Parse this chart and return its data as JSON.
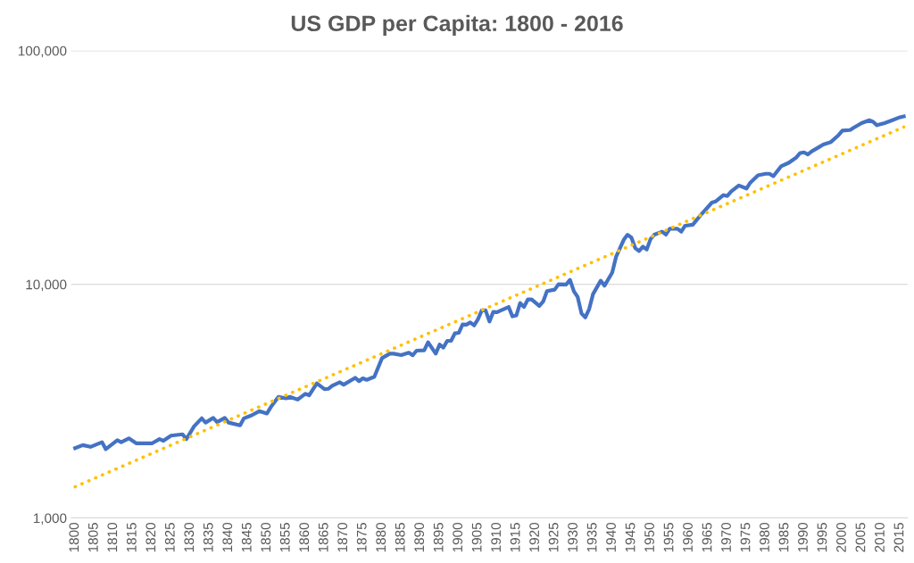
{
  "chart_data": {
    "type": "line",
    "title": "US GDP per Capita: 1800 - 2016",
    "series": [
      {
        "color": "#4472c4",
        "line_style": "solid",
        "x": [
          1800,
          1802,
          1804,
          1807,
          1808,
          1811,
          1812,
          1814,
          1816,
          1820,
          1822,
          1823,
          1825,
          1828,
          1829,
          1831,
          1833,
          1834,
          1836,
          1837,
          1839,
          1840,
          1843,
          1844,
          1846,
          1848,
          1850,
          1851,
          1853,
          1855,
          1856,
          1858,
          1860,
          1861,
          1863,
          1865,
          1866,
          1867,
          1869,
          1870,
          1873,
          1874,
          1875,
          1876,
          1878,
          1880,
          1882,
          1883,
          1885,
          1887,
          1888,
          1889,
          1891,
          1892,
          1894,
          1895,
          1896,
          1897,
          1898,
          1899,
          1900,
          1901,
          1902,
          1903,
          1904,
          1905,
          1906,
          1907,
          1908,
          1909,
          1910,
          1911,
          1913,
          1914,
          1915,
          1916,
          1917,
          1918,
          1919,
          1921,
          1922,
          1923,
          1925,
          1926,
          1928,
          1929,
          1930,
          1931,
          1932,
          1933,
          1934,
          1935,
          1937,
          1938,
          1940,
          1941,
          1943,
          1944,
          1945,
          1946,
          1947,
          1948,
          1949,
          1950,
          1951,
          1953,
          1954,
          1955,
          1957,
          1958,
          1959,
          1961,
          1963,
          1966,
          1967,
          1969,
          1970,
          1971,
          1973,
          1975,
          1976,
          1978,
          1980,
          1981,
          1982,
          1984,
          1986,
          1988,
          1989,
          1990,
          1991,
          1992,
          1994,
          1995,
          1997,
          1999,
          2000,
          2002,
          2003,
          2005,
          2007,
          2008,
          2009,
          2011,
          2013,
          2015,
          2016
        ],
        "values": [
          1990,
          2050,
          2015,
          2110,
          1970,
          2150,
          2110,
          2190,
          2085,
          2085,
          2175,
          2140,
          2250,
          2280,
          2175,
          2465,
          2670,
          2560,
          2680,
          2570,
          2680,
          2560,
          2490,
          2670,
          2750,
          2865,
          2800,
          2980,
          3300,
          3250,
          3300,
          3210,
          3400,
          3350,
          3770,
          3560,
          3570,
          3680,
          3810,
          3720,
          3980,
          3850,
          3960,
          3900,
          4020,
          4830,
          5050,
          5050,
          4980,
          5100,
          4970,
          5200,
          5220,
          5650,
          5050,
          5520,
          5360,
          5730,
          5730,
          6170,
          6200,
          6730,
          6720,
          6870,
          6670,
          7080,
          7730,
          7730,
          6930,
          7620,
          7600,
          7730,
          8000,
          7290,
          7360,
          8320,
          8000,
          8610,
          8610,
          8080,
          8440,
          9350,
          9490,
          10000,
          9980,
          10450,
          9350,
          8820,
          7500,
          7220,
          7840,
          9080,
          10360,
          9870,
          11220,
          13100,
          15500,
          16300,
          15850,
          14290,
          13880,
          14490,
          14090,
          15630,
          16320,
          16800,
          16320,
          17290,
          17290,
          16800,
          17820,
          17990,
          19730,
          22390,
          22650,
          24090,
          23880,
          24950,
          26480,
          25700,
          27230,
          29290,
          29730,
          29730,
          29030,
          31990,
          33110,
          34910,
          36480,
          36720,
          35980,
          37070,
          38730,
          39630,
          40650,
          43500,
          45500,
          45730,
          46870,
          48980,
          50390,
          49640,
          47970,
          48980,
          50390,
          51880,
          52330
        ]
      },
      {
        "color": "#ffc000",
        "line_style": "dotted",
        "x": [
          1800,
          2016
        ],
        "values": [
          1360,
          47100
        ]
      }
    ],
    "log": "y",
    "ylim": [
      1000,
      100000
    ],
    "yticks": [
      {
        "value": 1000,
        "label": "1,000"
      },
      {
        "value": 10000,
        "label": "10,000"
      },
      {
        "value": 100000,
        "label": "100,000"
      }
    ],
    "xlim": [
      1799,
      2017
    ],
    "xticks": [
      1800,
      1805,
      1810,
      1815,
      1820,
      1825,
      1830,
      1835,
      1840,
      1845,
      1850,
      1855,
      1860,
      1865,
      1870,
      1875,
      1880,
      1885,
      1890,
      1895,
      1900,
      1905,
      1910,
      1915,
      1920,
      1925,
      1930,
      1935,
      1940,
      1945,
      1950,
      1955,
      1960,
      1965,
      1970,
      1975,
      1980,
      1985,
      1990,
      1995,
      2000,
      2005,
      2010,
      2015
    ],
    "grid": "y",
    "legend": false,
    "marker": "none"
  }
}
